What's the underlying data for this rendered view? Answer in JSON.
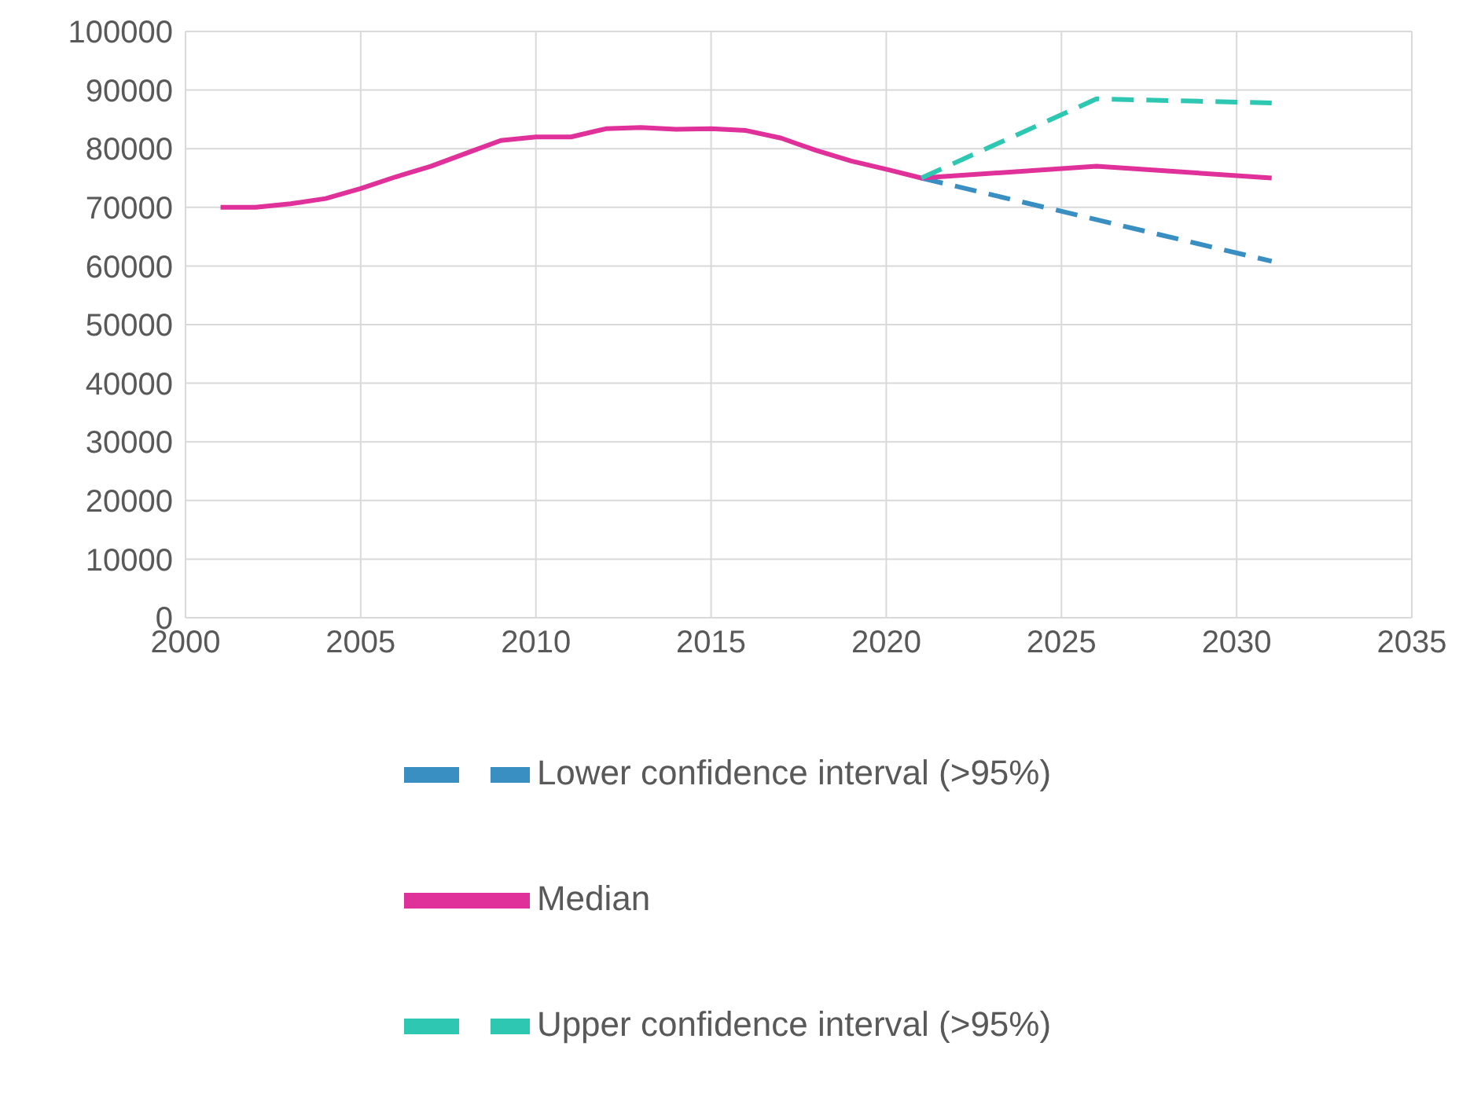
{
  "chart_data": {
    "type": "line",
    "xlim": [
      2000,
      2035
    ],
    "xticks": [
      2000,
      2005,
      2010,
      2015,
      2020,
      2025,
      2030,
      2035
    ],
    "ylim": [
      0,
      100000
    ],
    "yticks": [
      0,
      10000,
      20000,
      30000,
      40000,
      50000,
      60000,
      70000,
      80000,
      90000,
      100000
    ],
    "grid": true,
    "legend": "bottom",
    "marker": "none",
    "series": [
      {
        "name": "Lower confidence interval (>95%)",
        "color": "#3a8fc2",
        "line_style": "dashed",
        "x": [
          2021,
          2031
        ],
        "values": [
          75000,
          60800
        ]
      },
      {
        "name": "Median",
        "color": "#e0309a",
        "line_style": "solid",
        "x": [
          2001,
          2002,
          2003,
          2004,
          2005,
          2006,
          2007,
          2008,
          2009,
          2010,
          2011,
          2012,
          2013,
          2014,
          2015,
          2016,
          2017,
          2018,
          2019,
          2020,
          2021,
          2026,
          2031
        ],
        "values": [
          70000,
          70000,
          70600,
          71500,
          73200,
          75200,
          77000,
          79200,
          81400,
          82000,
          82000,
          83400,
          83600,
          83300,
          83400,
          83100,
          81800,
          79700,
          77900,
          76500,
          75000,
          77000,
          75000
        ]
      },
      {
        "name": "Upper confidence interval (>95%)",
        "color": "#2ec7b2",
        "line_style": "dashed",
        "x": [
          2021,
          2026,
          2031
        ],
        "values": [
          75000,
          88500,
          87800
        ]
      }
    ]
  }
}
